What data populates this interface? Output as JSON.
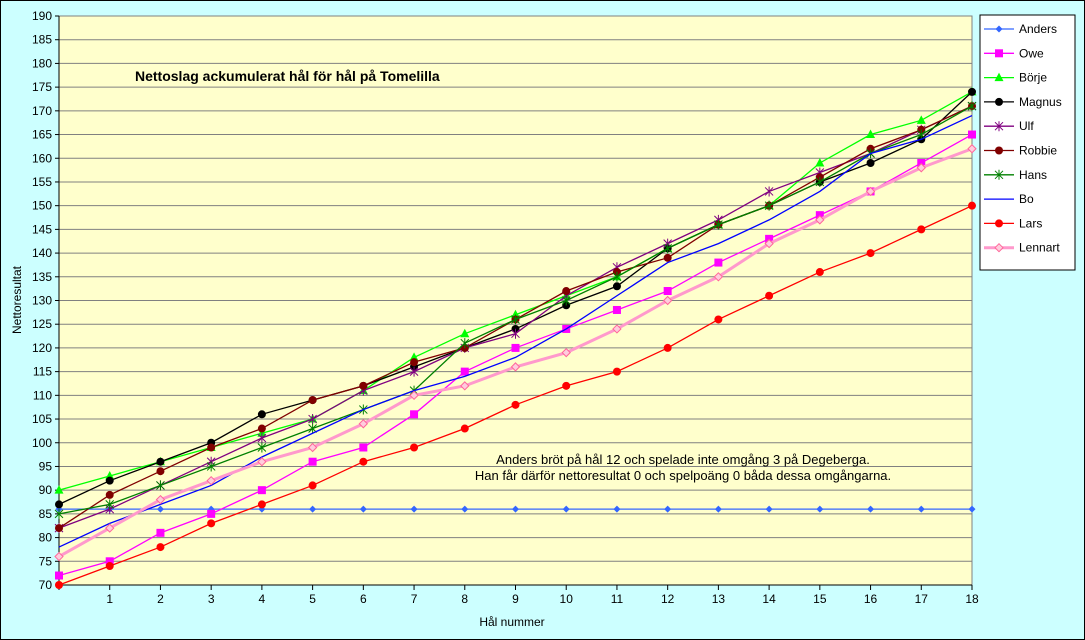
{
  "chart_data": {
    "type": "line",
    "title": "Nettoslag ackumulerat hål för hål på Tomelilla",
    "xlabel": "Hål nummer",
    "ylabel": "Nettoresultat",
    "xlim": [
      0,
      18
    ],
    "ylim": [
      70,
      190
    ],
    "ytick_step": 5,
    "x": [
      0,
      1,
      2,
      3,
      4,
      5,
      6,
      7,
      8,
      9,
      10,
      11,
      12,
      13,
      14,
      15,
      16,
      17,
      18
    ],
    "legend_position": "right",
    "grid": true,
    "annotation": [
      "Anders bröt på hål 12 och spelade inte omgång 3 på Degeberga.",
      "Han får därför nettoresultat 0 och spelpoäng 0 båda dessa omgångarna."
    ],
    "series": [
      {
        "name": "Anders",
        "color": "#3366ff",
        "marker": "diamond",
        "values": [
          86,
          86,
          86,
          86,
          86,
          86,
          86,
          86,
          86,
          86,
          86,
          86,
          86,
          86,
          86,
          86,
          86,
          86,
          86
        ]
      },
      {
        "name": "Owe",
        "color": "#ff00ff",
        "marker": "square",
        "values": [
          72,
          75,
          81,
          85,
          90,
          96,
          99,
          106,
          115,
          120,
          124,
          128,
          132,
          138,
          143,
          148,
          153,
          159,
          165
        ]
      },
      {
        "name": "Börje",
        "color": "#00ff00",
        "marker": "triangle",
        "values": [
          90,
          93,
          96,
          99,
          102,
          105,
          111,
          118,
          123,
          127,
          131,
          135,
          141,
          146,
          150,
          159,
          165,
          168,
          174
        ]
      },
      {
        "name": "Magnus",
        "color": "#000000",
        "marker": "circle",
        "values": [
          87,
          92,
          96,
          100,
          106,
          109,
          112,
          116,
          120,
          124,
          129,
          133,
          141,
          146,
          150,
          155,
          159,
          164,
          174
        ]
      },
      {
        "name": "Ulf",
        "color": "#800080",
        "marker": "star",
        "values": [
          82,
          86,
          91,
          96,
          101,
          105,
          111,
          115,
          120,
          123,
          131,
          137,
          142,
          147,
          153,
          157,
          161,
          166,
          171
        ]
      },
      {
        "name": "Robbie",
        "color": "#800000",
        "marker": "circle",
        "values": [
          82,
          89,
          94,
          99,
          103,
          109,
          112,
          117,
          120,
          126,
          132,
          136,
          139,
          146,
          150,
          156,
          162,
          166,
          171
        ]
      },
      {
        "name": "Hans",
        "color": "#008000",
        "marker": "star",
        "values": [
          85,
          87,
          91,
          95,
          99,
          103,
          107,
          111,
          121,
          126,
          130,
          135,
          141,
          146,
          150,
          155,
          161,
          165,
          171
        ]
      },
      {
        "name": "Bo",
        "color": "#0000ff",
        "marker": "none",
        "values": [
          78,
          83,
          87,
          91,
          97,
          102,
          107,
          111,
          114,
          118,
          124,
          131,
          138,
          142,
          147,
          153,
          161,
          164,
          169
        ]
      },
      {
        "name": "Lars",
        "color": "#ff0000",
        "marker": "circle",
        "values": [
          70,
          74,
          78,
          83,
          87,
          91,
          96,
          99,
          103,
          108,
          112,
          115,
          120,
          126,
          131,
          136,
          140,
          145,
          150
        ]
      },
      {
        "name": "Lennart",
        "color": "#ff99cc",
        "marker": "diamond-open",
        "values": [
          76,
          82,
          88,
          92,
          96,
          99,
          104,
          110,
          112,
          116,
          119,
          124,
          130,
          135,
          142,
          147,
          153,
          158,
          162
        ]
      }
    ]
  }
}
